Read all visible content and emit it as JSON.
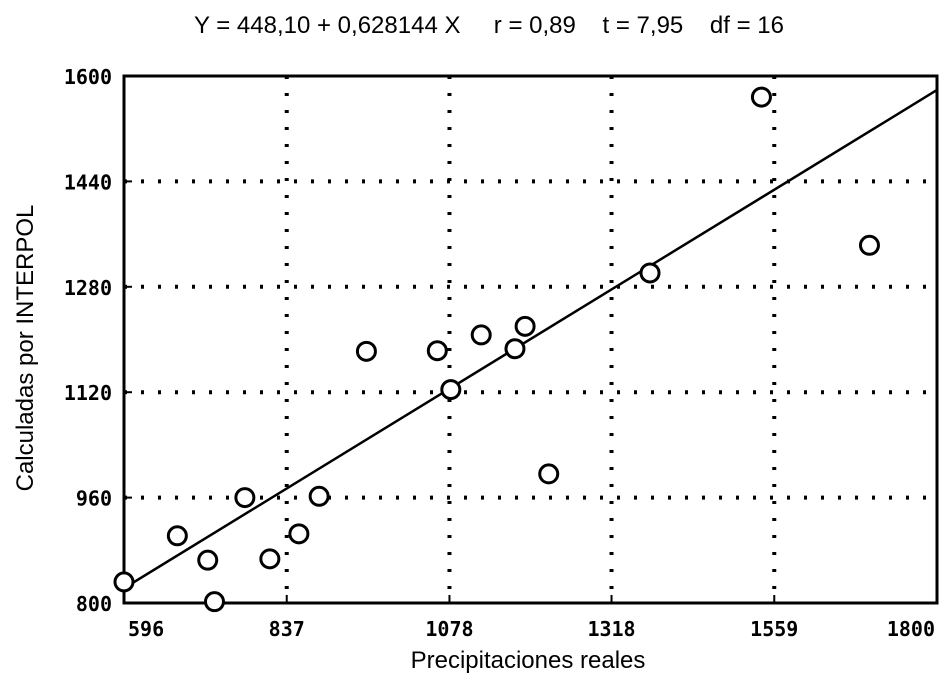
{
  "chart_data": {
    "type": "scatter",
    "title": "Y = 448,10 + 0,628144 X     r = 0,89    t = 7,95    df = 16",
    "xlabel": "Precipitaciones reales",
    "ylabel": "Calculadas por INTERPOL",
    "xlim": [
      596,
      1800
    ],
    "ylim": [
      800,
      1600
    ],
    "x_ticks": [
      "596",
      "837",
      "1078",
      "1318",
      "1559",
      "1800"
    ],
    "y_ticks": [
      "800",
      "960",
      "1120",
      "1280",
      "1440",
      "1600"
    ],
    "grid": true,
    "regression": {
      "intercept": 448.1,
      "slope": 0.628144
    },
    "points": [
      {
        "x": 596,
        "y": 832
      },
      {
        "x": 675,
        "y": 902
      },
      {
        "x": 720,
        "y": 865
      },
      {
        "x": 730,
        "y": 802
      },
      {
        "x": 775,
        "y": 960
      },
      {
        "x": 812,
        "y": 867
      },
      {
        "x": 855,
        "y": 905
      },
      {
        "x": 885,
        "y": 962
      },
      {
        "x": 955,
        "y": 1182
      },
      {
        "x": 1060,
        "y": 1183
      },
      {
        "x": 1080,
        "y": 1124
      },
      {
        "x": 1125,
        "y": 1207
      },
      {
        "x": 1175,
        "y": 1186
      },
      {
        "x": 1190,
        "y": 1220
      },
      {
        "x": 1225,
        "y": 996
      },
      {
        "x": 1375,
        "y": 1301
      },
      {
        "x": 1540,
        "y": 1568
      },
      {
        "x": 1700,
        "y": 1343
      }
    ]
  }
}
